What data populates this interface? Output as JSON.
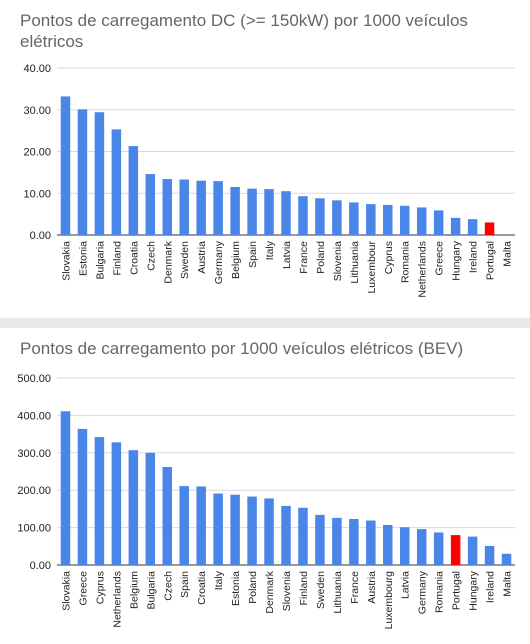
{
  "chart_data": [
    {
      "type": "bar",
      "title": "Pontos de carregamento DC (>= 150kW) por 1000 veículos elétricos",
      "title_lines": [
        "Pontos de carregamento DC (>= 150kW) por 1000 veículos",
        "elétricos"
      ],
      "categories": [
        "Slovakia",
        "Estonia",
        "Bulgaria",
        "Finland",
        "Croatia",
        "Czech",
        "Denmark",
        "Sweden",
        "Austria",
        "Germany",
        "Belgium",
        "Spain",
        "Italy",
        "Latvia",
        "France",
        "Poland",
        "Slovenia",
        "Lithuania",
        "Luxembour",
        "Cyprus",
        "Romania",
        "Netherlands",
        "Greece",
        "Hungary",
        "Ireland",
        "Portugal",
        "Malta"
      ],
      "values": [
        33.2,
        30.1,
        29.4,
        25.3,
        21.3,
        14.6,
        13.4,
        13.3,
        13.0,
        12.9,
        11.5,
        11.1,
        11.0,
        10.5,
        9.3,
        8.8,
        8.3,
        7.8,
        7.4,
        7.2,
        7.0,
        6.6,
        5.9,
        4.1,
        3.8,
        3.0,
        0
      ],
      "yticks": [
        "0.00",
        "10.00",
        "20.00",
        "30.00",
        "40.00"
      ],
      "ylim": [
        0,
        40
      ],
      "xlabel": "",
      "ylabel": "",
      "grid": true,
      "legend": "none",
      "bar_color": "#4a86e8",
      "highlight_category": "Portugal",
      "highlight_color": "#ff0000"
    },
    {
      "type": "bar",
      "title": "Pontos de carregamento por 1000 veículos elétricos (BEV)",
      "title_lines": [
        "Pontos de carregamento por 1000 veículos elétricos (BEV)"
      ],
      "categories": [
        "Slovakia",
        "Greece",
        "Cyprus",
        "Netherlands",
        "Belgium",
        "Bulgaria",
        "Czech",
        "Spain",
        "Croatia",
        "Italy",
        "Estonia",
        "Poland",
        "Denmark",
        "Slovenia",
        "Finland",
        "Sweden",
        "Lithuania",
        "France",
        "Austria",
        "Luxembourg",
        "Latvia",
        "Germany",
        "Romania",
        "Portugal",
        "Hungary",
        "Ireland",
        "Malta"
      ],
      "values": [
        411,
        364,
        342,
        328,
        307,
        300,
        262,
        211,
        210,
        191,
        188,
        183,
        178,
        158,
        153,
        134,
        126,
        123,
        119,
        107,
        101,
        96,
        87,
        80,
        76,
        51,
        30
      ],
      "yticks": [
        "0.00",
        "100.00",
        "200.00",
        "300.00",
        "400.00",
        "500.00"
      ],
      "ylim": [
        0,
        500
      ],
      "xlabel": "",
      "ylabel": "",
      "grid": true,
      "legend": "none",
      "bar_color": "#4a86e8",
      "highlight_category": "Portugal",
      "highlight_color": "#ff0000"
    }
  ]
}
